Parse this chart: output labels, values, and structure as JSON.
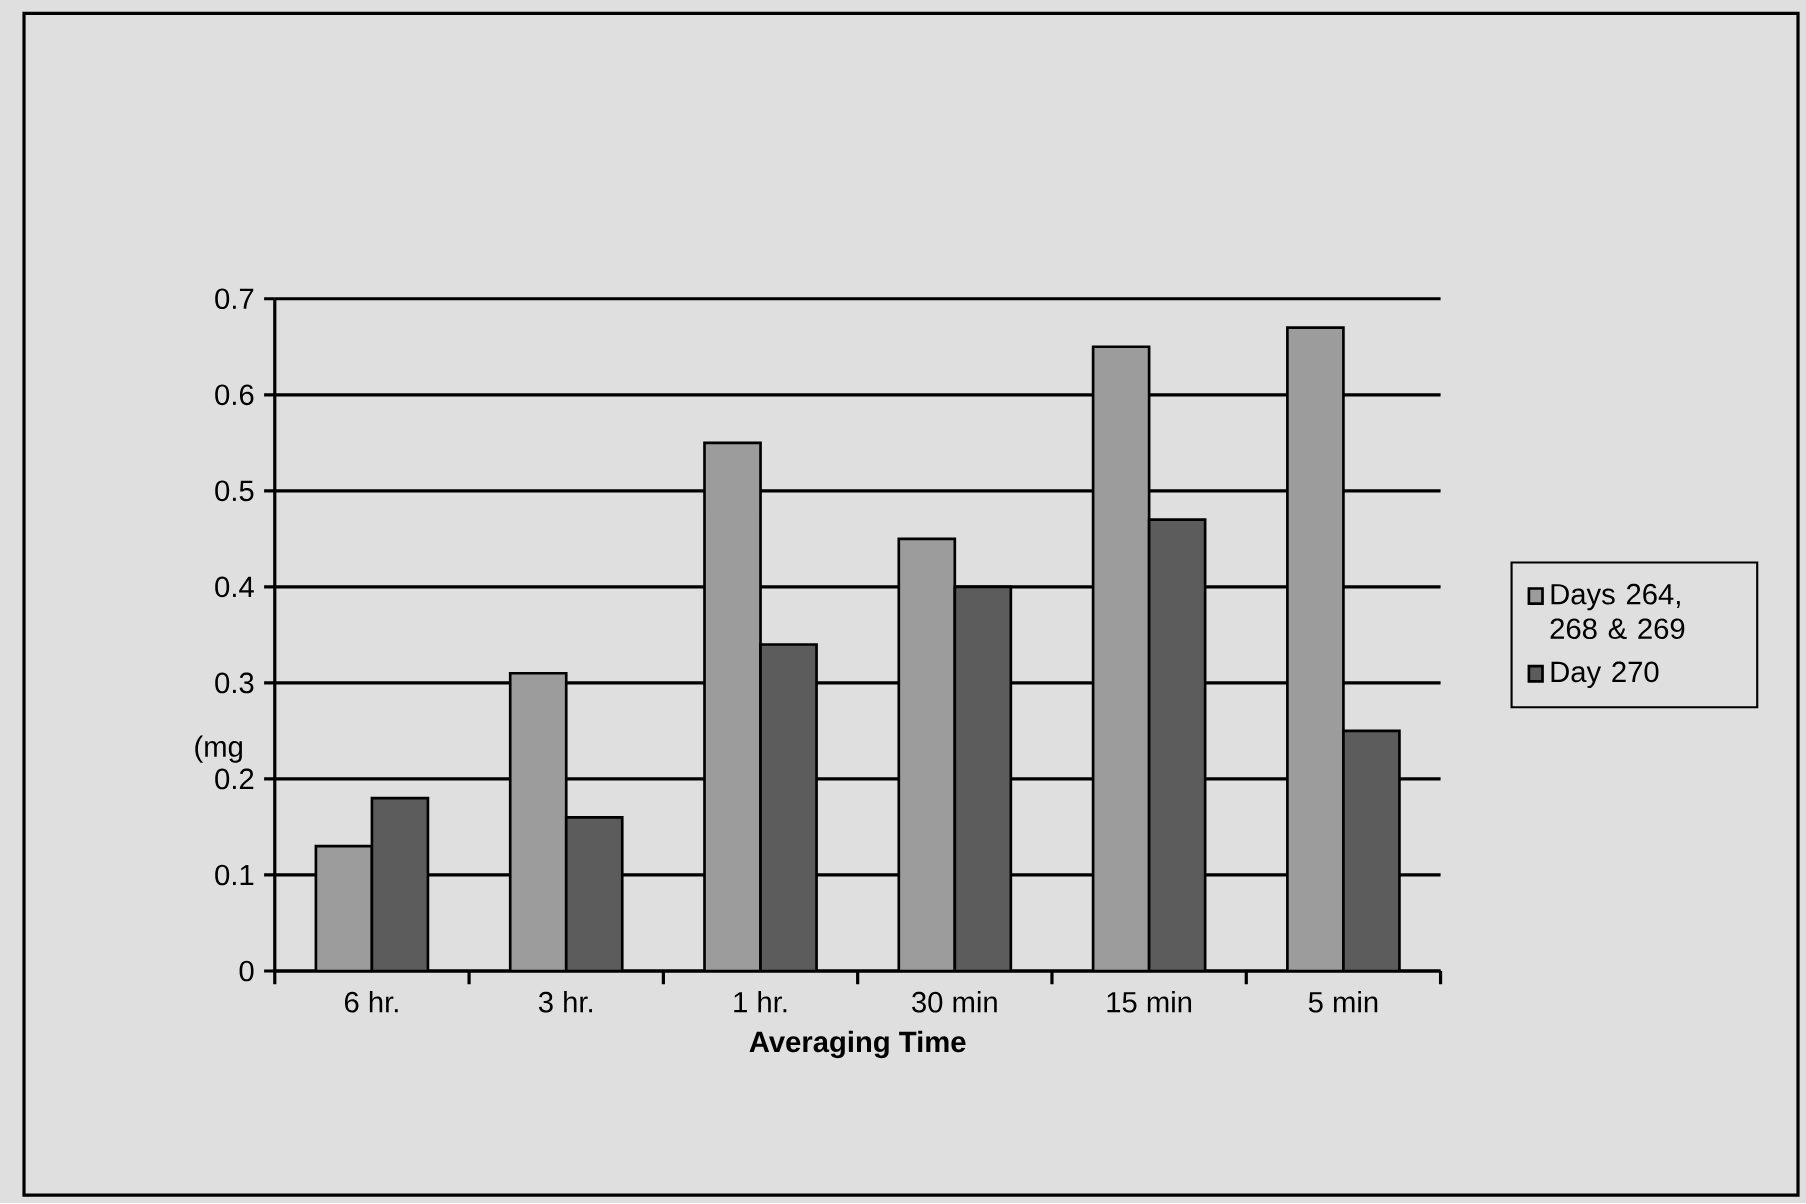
{
  "chart_data": {
    "type": "bar",
    "xlabel": "Averaging Time",
    "ylabel": "(mg",
    "categories": [
      "6 hr.",
      "3 hr.",
      "1 hr.",
      "30 min",
      "15 min",
      "5 min"
    ],
    "series": [
      {
        "name": "Days 264, 268 & 269",
        "color": "#9c9c9c",
        "values": [
          0.13,
          0.31,
          0.55,
          0.45,
          0.65,
          0.67
        ]
      },
      {
        "name": "Day 270",
        "color": "#5c5c5c",
        "values": [
          0.18,
          0.16,
          0.34,
          0.4,
          0.47,
          0.25
        ]
      }
    ],
    "ylim": [
      0,
      0.7
    ],
    "yticks": [
      0,
      0.1,
      0.2,
      0.3,
      0.4,
      0.5,
      0.6,
      0.7
    ],
    "grid": "y",
    "legend": "right"
  }
}
